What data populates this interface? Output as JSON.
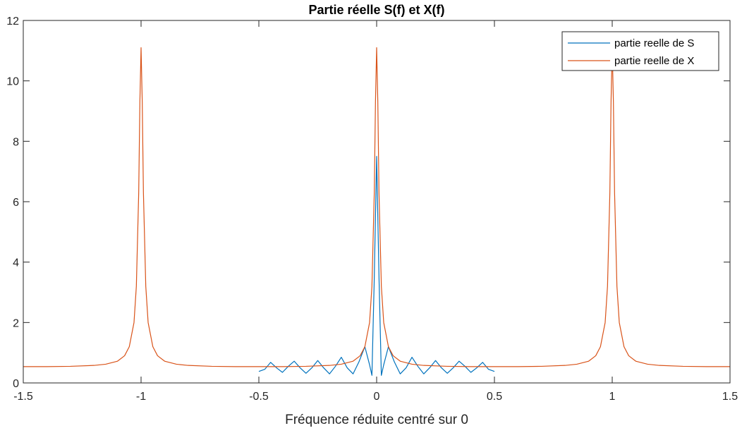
{
  "chart_data": {
    "type": "line",
    "title": "Partie réelle S(f) et X(f)",
    "xlabel": "Fréquence réduite centré sur 0",
    "ylabel": "",
    "xlim": [
      -1.5,
      1.5
    ],
    "ylim": [
      0,
      12
    ],
    "xticks": [
      -1.5,
      -1,
      -0.5,
      0,
      0.5,
      1,
      1.5
    ],
    "xtick_labels": [
      "-1.5",
      "-1",
      "-0.5",
      "0",
      "0.5",
      "1",
      "1.5"
    ],
    "yticks": [
      0,
      2,
      4,
      6,
      8,
      10,
      12
    ],
    "ytick_labels": [
      "0",
      "2",
      "4",
      "6",
      "8",
      "10",
      "12"
    ],
    "grid": false,
    "legend_position": "top-right",
    "series": [
      {
        "name": "partie reelle de S",
        "color": "#0072BD",
        "x": [
          -0.5,
          -0.475,
          -0.45,
          -0.425,
          -0.4,
          -0.375,
          -0.35,
          -0.325,
          -0.3,
          -0.275,
          -0.25,
          -0.225,
          -0.2,
          -0.175,
          -0.15,
          -0.125,
          -0.1,
          -0.075,
          -0.05,
          -0.03,
          -0.02,
          -0.01,
          0,
          0.01,
          0.02,
          0.03,
          0.05,
          0.075,
          0.1,
          0.125,
          0.15,
          0.175,
          0.2,
          0.225,
          0.25,
          0.275,
          0.3,
          0.325,
          0.35,
          0.375,
          0.4,
          0.425,
          0.45,
          0.475,
          0.5
        ],
        "y": [
          0.38,
          0.45,
          0.68,
          0.5,
          0.35,
          0.55,
          0.72,
          0.5,
          0.32,
          0.5,
          0.74,
          0.5,
          0.3,
          0.55,
          0.85,
          0.5,
          0.3,
          0.7,
          1.2,
          0.6,
          0.25,
          3.5,
          7.5,
          3.5,
          0.25,
          0.6,
          1.2,
          0.7,
          0.3,
          0.5,
          0.85,
          0.55,
          0.3,
          0.5,
          0.74,
          0.5,
          0.32,
          0.5,
          0.72,
          0.55,
          0.35,
          0.5,
          0.68,
          0.45,
          0.38
        ]
      },
      {
        "name": "partie reelle de X",
        "color": "#D95319",
        "x": [
          -1.5,
          -1.4,
          -1.3,
          -1.2,
          -1.15,
          -1.1,
          -1.07,
          -1.05,
          -1.03,
          -1.02,
          -1.01,
          -1.005,
          -1,
          -0.995,
          -0.99,
          -0.98,
          -0.97,
          -0.95,
          -0.93,
          -0.9,
          -0.85,
          -0.8,
          -0.7,
          -0.6,
          -0.5,
          -0.4,
          -0.3,
          -0.2,
          -0.15,
          -0.1,
          -0.07,
          -0.05,
          -0.03,
          -0.02,
          -0.01,
          -0.005,
          0,
          0.005,
          0.01,
          0.02,
          0.03,
          0.05,
          0.07,
          0.1,
          0.15,
          0.2,
          0.3,
          0.4,
          0.5,
          0.6,
          0.7,
          0.8,
          0.85,
          0.9,
          0.93,
          0.95,
          0.97,
          0.98,
          0.99,
          0.995,
          1,
          1.005,
          1.01,
          1.02,
          1.03,
          1.05,
          1.07,
          1.1,
          1.15,
          1.2,
          1.3,
          1.4,
          1.5
        ],
        "y": [
          0.54,
          0.54,
          0.55,
          0.58,
          0.62,
          0.72,
          0.9,
          1.2,
          2.0,
          3.2,
          6.3,
          9.3,
          11.1,
          9.3,
          6.3,
          3.2,
          2.0,
          1.2,
          0.9,
          0.72,
          0.62,
          0.58,
          0.55,
          0.54,
          0.54,
          0.54,
          0.55,
          0.58,
          0.62,
          0.72,
          0.9,
          1.2,
          2.0,
          3.2,
          6.3,
          9.3,
          11.1,
          9.3,
          6.3,
          3.2,
          2.0,
          1.2,
          0.9,
          0.72,
          0.62,
          0.58,
          0.55,
          0.54,
          0.54,
          0.54,
          0.55,
          0.58,
          0.62,
          0.72,
          0.9,
          1.2,
          2.0,
          3.2,
          6.3,
          9.3,
          11.1,
          9.3,
          6.3,
          3.2,
          2.0,
          1.2,
          0.9,
          0.72,
          0.62,
          0.58,
          0.55,
          0.54,
          0.54
        ]
      }
    ]
  }
}
